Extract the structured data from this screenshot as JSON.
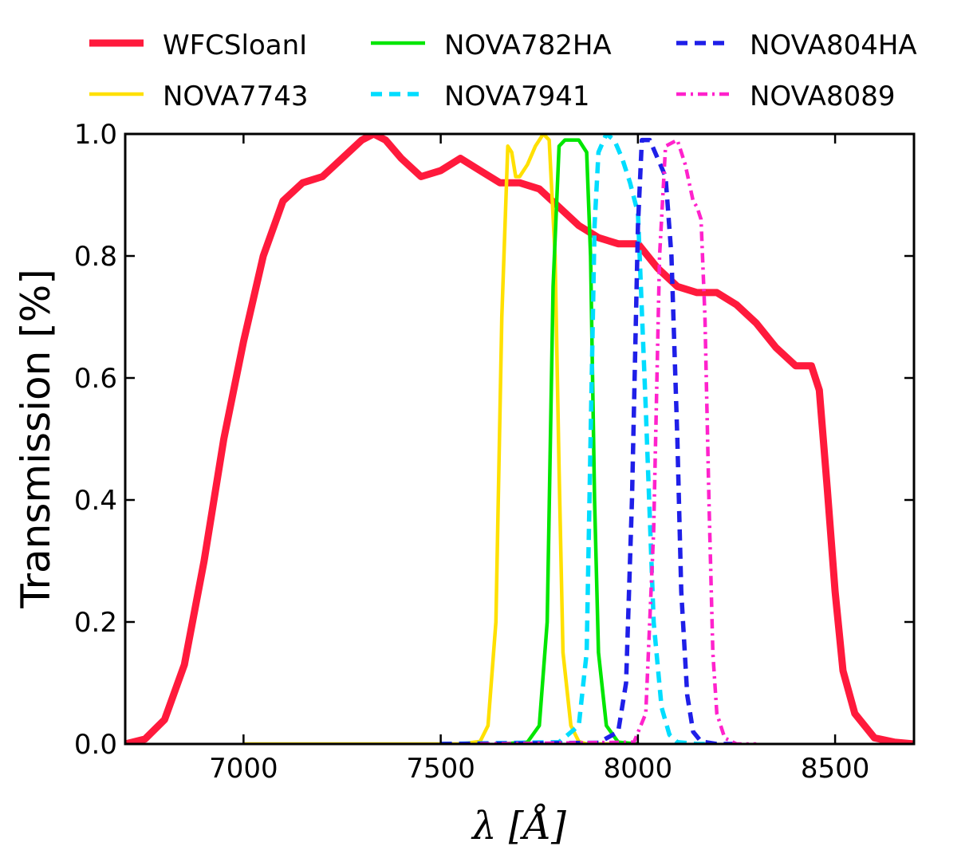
{
  "chart_data": {
    "type": "line",
    "title": "",
    "xlabel": "λ [Å]",
    "ylabel": "Transmission [%]",
    "xlim": [
      6700,
      8700
    ],
    "ylim": [
      0.0,
      1.0
    ],
    "xticks": [
      7000,
      7500,
      8000,
      8500
    ],
    "yticks": [
      0.0,
      0.2,
      0.4,
      0.6,
      0.8,
      1.0
    ],
    "xtick_labels": [
      "7000",
      "7500",
      "8000",
      "8500"
    ],
    "ytick_labels": [
      "0.0",
      "0.2",
      "0.4",
      "0.6",
      "0.8",
      "1.0"
    ],
    "legend_position": "top, above plot, 3 columns",
    "series": [
      {
        "name": "WFCSloanI",
        "color": "#ff1a3c",
        "style": "solid-thick",
        "x": [
          6700,
          6750,
          6800,
          6850,
          6900,
          6950,
          7000,
          7050,
          7100,
          7150,
          7200,
          7250,
          7300,
          7330,
          7360,
          7400,
          7450,
          7500,
          7550,
          7600,
          7650,
          7700,
          7750,
          7800,
          7850,
          7900,
          7950,
          8000,
          8050,
          8100,
          8150,
          8200,
          8250,
          8300,
          8350,
          8400,
          8440,
          8460,
          8480,
          8500,
          8520,
          8550,
          8600,
          8650,
          8700
        ],
        "y": [
          0.0,
          0.008,
          0.04,
          0.13,
          0.3,
          0.5,
          0.66,
          0.8,
          0.89,
          0.92,
          0.93,
          0.96,
          0.99,
          1.0,
          0.99,
          0.96,
          0.93,
          0.94,
          0.96,
          0.94,
          0.92,
          0.92,
          0.91,
          0.88,
          0.85,
          0.83,
          0.82,
          0.82,
          0.78,
          0.75,
          0.74,
          0.74,
          0.72,
          0.69,
          0.65,
          0.62,
          0.62,
          0.58,
          0.42,
          0.25,
          0.12,
          0.05,
          0.01,
          0.003,
          0.0
        ]
      },
      {
        "name": "NOVA7743",
        "color": "#ffe000",
        "style": "solid",
        "x": [
          7000,
          7550,
          7600,
          7620,
          7640,
          7655,
          7670,
          7680,
          7690,
          7700,
          7720,
          7740,
          7760,
          7775,
          7790,
          7800,
          7810,
          7830,
          7850,
          7870,
          8000
        ],
        "y": [
          0.0,
          0.0,
          0.004,
          0.03,
          0.2,
          0.7,
          0.98,
          0.97,
          0.93,
          0.93,
          0.95,
          0.98,
          1.0,
          0.99,
          0.8,
          0.45,
          0.15,
          0.03,
          0.004,
          0.0,
          0.0
        ]
      },
      {
        "name": "NOVA782HA",
        "color": "#00e600",
        "style": "solid",
        "x": [
          7650,
          7720,
          7750,
          7770,
          7785,
          7800,
          7815,
          7830,
          7850,
          7870,
          7880,
          7890,
          7900,
          7920,
          7950,
          8000
        ],
        "y": [
          0.0,
          0.003,
          0.03,
          0.2,
          0.75,
          0.98,
          0.99,
          0.99,
          0.99,
          0.97,
          0.8,
          0.4,
          0.15,
          0.03,
          0.003,
          0.0
        ]
      },
      {
        "name": "NOVA7941",
        "color": "#00ddff",
        "style": "dashed",
        "x": [
          7500,
          7800,
          7850,
          7870,
          7880,
          7890,
          7900,
          7920,
          7940,
          7960,
          7980,
          8000,
          8020,
          8040,
          8060,
          8080,
          8100,
          8150,
          8200
        ],
        "y": [
          0.0,
          0.003,
          0.03,
          0.15,
          0.5,
          0.85,
          0.97,
          1.0,
          0.99,
          0.96,
          0.92,
          0.87,
          0.55,
          0.2,
          0.06,
          0.015,
          0.003,
          0.0,
          0.0
        ]
      },
      {
        "name": "NOVA804HA",
        "color": "#1f1fe8",
        "style": "dashed",
        "x": [
          7500,
          7900,
          7950,
          7970,
          7985,
          8000,
          8010,
          8030,
          8050,
          8070,
          8085,
          8100,
          8110,
          8125,
          8140,
          8160,
          8200,
          8250
        ],
        "y": [
          0.0,
          0.002,
          0.02,
          0.1,
          0.4,
          0.85,
          0.99,
          0.99,
          0.96,
          0.93,
          0.8,
          0.5,
          0.25,
          0.08,
          0.02,
          0.004,
          0.0,
          0.0
        ]
      },
      {
        "name": "NOVA8089",
        "color": "#ff22cc",
        "style": "dashdot",
        "x": [
          7600,
          7990,
          8020,
          8040,
          8055,
          8070,
          8100,
          8120,
          8130,
          8140,
          8150,
          8160,
          8170,
          8180,
          8190,
          8200,
          8220,
          8250,
          8300
        ],
        "y": [
          0.0,
          0.003,
          0.05,
          0.35,
          0.8,
          0.98,
          0.99,
          0.95,
          0.92,
          0.89,
          0.88,
          0.86,
          0.7,
          0.4,
          0.15,
          0.05,
          0.01,
          0.0,
          0.0
        ]
      }
    ]
  }
}
